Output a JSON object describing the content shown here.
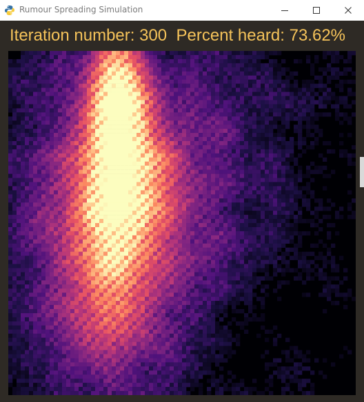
{
  "window": {
    "title": "Rumour Spreading Simulation",
    "icons": [
      "python-icon",
      "minimize-icon",
      "maximize-icon",
      "close-icon"
    ]
  },
  "status": {
    "iteration_label": "Iteration number:",
    "iteration_value": "300",
    "percent_label": "Percent heard:",
    "percent_value": "73.62%"
  },
  "heatmap": {
    "colormap": "magma",
    "grid_cols": 84,
    "grid_rows": 84,
    "background_color": "#000004",
    "accent_color": "#f5c35a"
  }
}
